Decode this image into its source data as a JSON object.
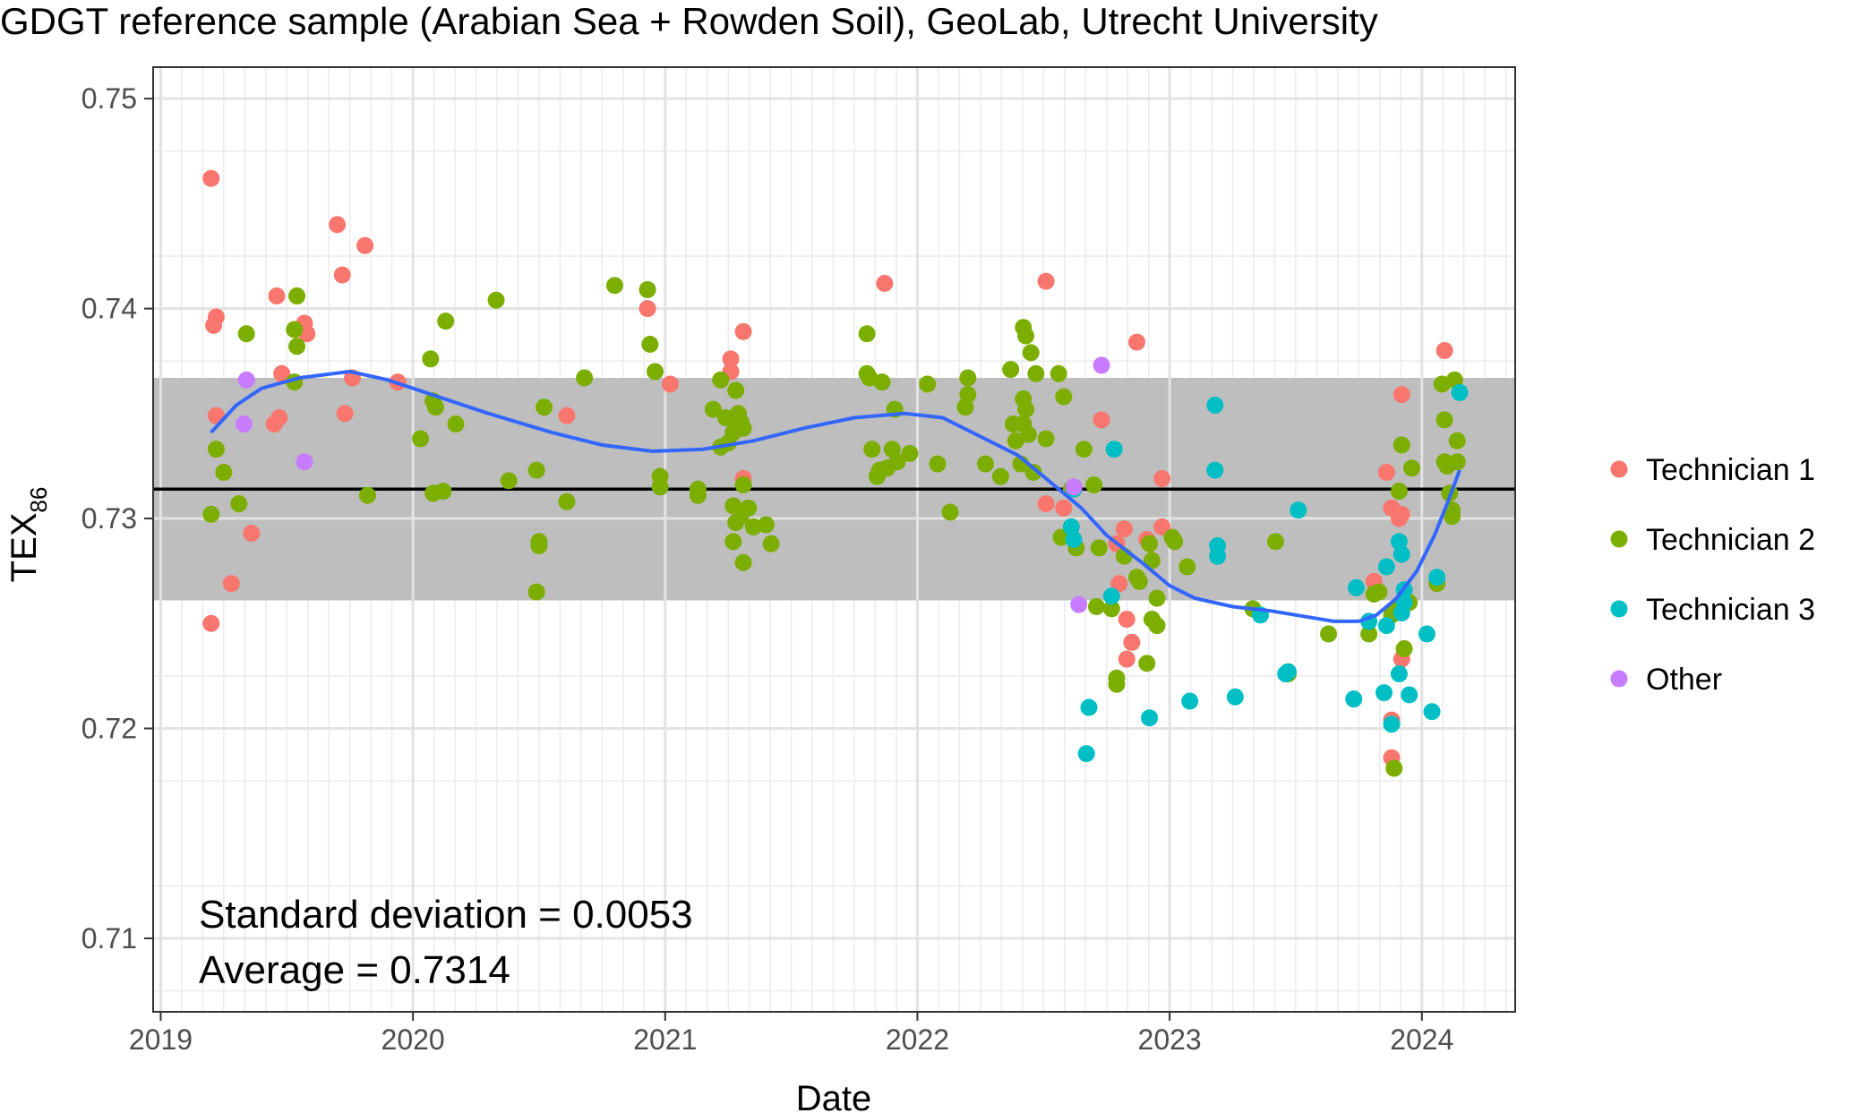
{
  "chart_data": {
    "type": "scatter",
    "title": "GDGT reference sample (Arabian Sea + Rowden Soil), GeoLab, Utrecht University",
    "xlabel": "Date",
    "ylabel_main": "TEX",
    "ylabel_sub": "86",
    "xlim": [
      2018.97,
      2024.37
    ],
    "ylim": [
      0.7065,
      0.7515
    ],
    "x_ticks": [
      2019,
      2020,
      2021,
      2022,
      2023,
      2024
    ],
    "x_tick_labels": [
      "2019",
      "2020",
      "2021",
      "2022",
      "2023",
      "2024"
    ],
    "y_ticks": [
      0.71,
      0.72,
      0.73,
      0.74,
      0.75
    ],
    "y_tick_labels": [
      "0.71",
      "0.72",
      "0.73",
      "0.74",
      "0.75"
    ],
    "grid": true,
    "legend_position": "right",
    "average": 0.7314,
    "band": [
      0.7261,
      0.7367
    ],
    "annotations": [
      "Standard deviation = 0.0053",
      "Average = 0.7314"
    ],
    "series": [
      {
        "name": "Technician 1",
        "color": "#F8766D",
        "points": [
          [
            2019.2,
            0.7462
          ],
          [
            2019.22,
            0.7396
          ],
          [
            2019.21,
            0.7392
          ],
          [
            2019.22,
            0.7349
          ],
          [
            2019.2,
            0.725
          ],
          [
            2019.28,
            0.7269
          ],
          [
            2019.36,
            0.7293
          ],
          [
            2019.46,
            0.7406
          ],
          [
            2019.48,
            0.7369
          ],
          [
            2019.45,
            0.7345
          ],
          [
            2019.47,
            0.7348
          ],
          [
            2019.57,
            0.7393
          ],
          [
            2019.58,
            0.7388
          ],
          [
            2019.7,
            0.744
          ],
          [
            2019.72,
            0.7416
          ],
          [
            2019.73,
            0.735
          ],
          [
            2019.76,
            0.7367
          ],
          [
            2019.81,
            0.743
          ],
          [
            2019.94,
            0.7365
          ],
          [
            2020.61,
            0.7349
          ],
          [
            2020.93,
            0.74
          ],
          [
            2021.02,
            0.7364
          ],
          [
            2021.26,
            0.7376
          ],
          [
            2021.26,
            0.737
          ],
          [
            2021.31,
            0.7389
          ],
          [
            2021.31,
            0.7319
          ],
          [
            2021.87,
            0.7412
          ],
          [
            2022.51,
            0.7413
          ],
          [
            2022.51,
            0.7307
          ],
          [
            2022.58,
            0.7305
          ],
          [
            2022.73,
            0.7347
          ],
          [
            2022.79,
            0.7288
          ],
          [
            2022.82,
            0.7295
          ],
          [
            2022.8,
            0.7269
          ],
          [
            2022.83,
            0.7252
          ],
          [
            2022.85,
            0.7241
          ],
          [
            2022.83,
            0.7233
          ],
          [
            2022.87,
            0.7384
          ],
          [
            2022.91,
            0.729
          ],
          [
            2022.97,
            0.7319
          ],
          [
            2022.97,
            0.7296
          ],
          [
            2023.81,
            0.727
          ],
          [
            2023.86,
            0.7322
          ],
          [
            2023.88,
            0.7305
          ],
          [
            2023.92,
            0.7302
          ],
          [
            2023.91,
            0.73
          ],
          [
            2023.92,
            0.7359
          ],
          [
            2023.92,
            0.7233
          ],
          [
            2023.88,
            0.7204
          ],
          [
            2023.88,
            0.7186
          ],
          [
            2024.09,
            0.738
          ]
        ]
      },
      {
        "name": "Technician 2",
        "color": "#7CAE00",
        "points": [
          [
            2019.2,
            0.7302
          ],
          [
            2019.22,
            0.7333
          ],
          [
            2019.25,
            0.7322
          ],
          [
            2019.31,
            0.7307
          ],
          [
            2019.34,
            0.7388
          ],
          [
            2019.53,
            0.739
          ],
          [
            2019.54,
            0.7406
          ],
          [
            2019.54,
            0.7382
          ],
          [
            2019.53,
            0.7365
          ],
          [
            2019.82,
            0.7311
          ],
          [
            2020.03,
            0.7338
          ],
          [
            2020.07,
            0.7376
          ],
          [
            2020.08,
            0.7356
          ],
          [
            2020.09,
            0.7353
          ],
          [
            2020.13,
            0.7394
          ],
          [
            2020.17,
            0.7345
          ],
          [
            2020.08,
            0.7312
          ],
          [
            2020.12,
            0.7313
          ],
          [
            2020.33,
            0.7404
          ],
          [
            2020.38,
            0.7318
          ],
          [
            2020.49,
            0.7323
          ],
          [
            2020.5,
            0.7289
          ],
          [
            2020.5,
            0.7287
          ],
          [
            2020.49,
            0.7265
          ],
          [
            2020.52,
            0.7353
          ],
          [
            2020.61,
            0.7308
          ],
          [
            2020.68,
            0.7367
          ],
          [
            2020.8,
            0.7411
          ],
          [
            2020.93,
            0.7409
          ],
          [
            2020.94,
            0.7383
          ],
          [
            2020.96,
            0.737
          ],
          [
            2020.98,
            0.732
          ],
          [
            2020.98,
            0.7315
          ],
          [
            2021.13,
            0.7314
          ],
          [
            2021.13,
            0.7311
          ],
          [
            2021.19,
            0.7352
          ],
          [
            2021.22,
            0.7366
          ],
          [
            2021.22,
            0.7334
          ],
          [
            2021.24,
            0.7348
          ],
          [
            2021.25,
            0.7336
          ],
          [
            2021.27,
            0.7341
          ],
          [
            2021.28,
            0.7361
          ],
          [
            2021.29,
            0.735
          ],
          [
            2021.3,
            0.7346
          ],
          [
            2021.31,
            0.7343
          ],
          [
            2021.27,
            0.7306
          ],
          [
            2021.28,
            0.7298
          ],
          [
            2021.3,
            0.7301
          ],
          [
            2021.31,
            0.7316
          ],
          [
            2021.33,
            0.7305
          ],
          [
            2021.27,
            0.7289
          ],
          [
            2021.31,
            0.7279
          ],
          [
            2021.35,
            0.7296
          ],
          [
            2021.4,
            0.7297
          ],
          [
            2021.42,
            0.7288
          ],
          [
            2021.8,
            0.7388
          ],
          [
            2021.8,
            0.7369
          ],
          [
            2021.81,
            0.7367
          ],
          [
            2021.82,
            0.7333
          ],
          [
            2021.85,
            0.7323
          ],
          [
            2021.84,
            0.732
          ],
          [
            2021.86,
            0.7365
          ],
          [
            2021.88,
            0.7324
          ],
          [
            2021.9,
            0.7333
          ],
          [
            2021.91,
            0.7352
          ],
          [
            2021.92,
            0.7327
          ],
          [
            2021.97,
            0.7331
          ],
          [
            2022.04,
            0.7364
          ],
          [
            2022.08,
            0.7326
          ],
          [
            2022.13,
            0.7303
          ],
          [
            2022.19,
            0.7353
          ],
          [
            2022.2,
            0.7367
          ],
          [
            2022.2,
            0.7359
          ],
          [
            2022.27,
            0.7326
          ],
          [
            2022.33,
            0.732
          ],
          [
            2022.37,
            0.7371
          ],
          [
            2022.38,
            0.7345
          ],
          [
            2022.39,
            0.7337
          ],
          [
            2022.42,
            0.7391
          ],
          [
            2022.43,
            0.7387
          ],
          [
            2022.42,
            0.7357
          ],
          [
            2022.43,
            0.7352
          ],
          [
            2022.42,
            0.7345
          ],
          [
            2022.44,
            0.734
          ],
          [
            2022.41,
            0.7326
          ],
          [
            2022.45,
            0.7379
          ],
          [
            2022.47,
            0.7369
          ],
          [
            2022.46,
            0.7322
          ],
          [
            2022.51,
            0.7338
          ],
          [
            2022.56,
            0.7369
          ],
          [
            2022.58,
            0.7358
          ],
          [
            2022.61,
            0.7314
          ],
          [
            2022.66,
            0.7333
          ],
          [
            2022.57,
            0.7291
          ],
          [
            2022.63,
            0.7286
          ],
          [
            2022.7,
            0.7316
          ],
          [
            2022.72,
            0.7286
          ],
          [
            2022.71,
            0.7258
          ],
          [
            2022.77,
            0.7257
          ],
          [
            2022.79,
            0.7224
          ],
          [
            2022.79,
            0.7221
          ],
          [
            2022.82,
            0.7282
          ],
          [
            2022.87,
            0.7272
          ],
          [
            2022.88,
            0.727
          ],
          [
            2022.91,
            0.7231
          ],
          [
            2022.92,
            0.7288
          ],
          [
            2022.93,
            0.728
          ],
          [
            2022.93,
            0.7252
          ],
          [
            2022.95,
            0.7249
          ],
          [
            2022.95,
            0.7262
          ],
          [
            2023.01,
            0.7291
          ],
          [
            2023.02,
            0.7289
          ],
          [
            2023.07,
            0.7277
          ],
          [
            2023.33,
            0.7257
          ],
          [
            2023.42,
            0.7289
          ],
          [
            2023.47,
            0.7226
          ],
          [
            2023.63,
            0.7245
          ],
          [
            2023.79,
            0.7245
          ],
          [
            2023.81,
            0.7264
          ],
          [
            2023.83,
            0.7265
          ],
          [
            2023.88,
            0.7254
          ],
          [
            2023.9,
            0.7257
          ],
          [
            2023.91,
            0.7313
          ],
          [
            2023.92,
            0.7335
          ],
          [
            2023.93,
            0.7238
          ],
          [
            2023.95,
            0.726
          ],
          [
            2023.96,
            0.7324
          ],
          [
            2023.89,
            0.7181
          ],
          [
            2024.06,
            0.7269
          ],
          [
            2024.08,
            0.7364
          ],
          [
            2024.09,
            0.7347
          ],
          [
            2024.09,
            0.7327
          ],
          [
            2024.1,
            0.7325
          ],
          [
            2024.11,
            0.7312
          ],
          [
            2024.12,
            0.7304
          ],
          [
            2024.12,
            0.7301
          ],
          [
            2024.13,
            0.7366
          ],
          [
            2024.14,
            0.7327
          ],
          [
            2024.14,
            0.7337
          ]
        ]
      },
      {
        "name": "Technician 3",
        "color": "#00BFC4",
        "points": [
          [
            2022.61,
            0.7296
          ],
          [
            2022.62,
            0.7314
          ],
          [
            2022.62,
            0.729
          ],
          [
            2022.67,
            0.7188
          ],
          [
            2022.68,
            0.721
          ],
          [
            2022.77,
            0.7263
          ],
          [
            2022.78,
            0.7333
          ],
          [
            2022.92,
            0.7205
          ],
          [
            2023.08,
            0.7213
          ],
          [
            2023.18,
            0.7354
          ],
          [
            2023.18,
            0.7323
          ],
          [
            2023.19,
            0.7287
          ],
          [
            2023.19,
            0.7282
          ],
          [
            2023.26,
            0.7215
          ],
          [
            2023.36,
            0.7254
          ],
          [
            2023.47,
            0.7227
          ],
          [
            2023.46,
            0.7226
          ],
          [
            2023.51,
            0.7304
          ],
          [
            2023.73,
            0.7214
          ],
          [
            2023.74,
            0.7267
          ],
          [
            2023.79,
            0.7251
          ],
          [
            2023.85,
            0.7217
          ],
          [
            2023.86,
            0.7277
          ],
          [
            2023.86,
            0.7249
          ],
          [
            2023.88,
            0.7202
          ],
          [
            2023.91,
            0.7289
          ],
          [
            2023.92,
            0.7283
          ],
          [
            2023.93,
            0.7266
          ],
          [
            2023.93,
            0.726
          ],
          [
            2023.92,
            0.7255
          ],
          [
            2023.91,
            0.7226
          ],
          [
            2023.95,
            0.7216
          ],
          [
            2024.02,
            0.7245
          ],
          [
            2024.04,
            0.7208
          ],
          [
            2024.06,
            0.7272
          ],
          [
            2024.15,
            0.736
          ]
        ]
      },
      {
        "name": "Other",
        "color": "#C77CFF",
        "points": [
          [
            2019.34,
            0.7366
          ],
          [
            2019.33,
            0.7345
          ],
          [
            2019.57,
            0.7327
          ],
          [
            2022.62,
            0.7315
          ],
          [
            2022.64,
            0.7259
          ],
          [
            2022.73,
            0.7373
          ]
        ]
      },
      {
        "name": "",
        "type": "line",
        "color": "#3366FF",
        "points": [
          [
            2019.2,
            0.7341
          ],
          [
            2019.3,
            0.7354
          ],
          [
            2019.4,
            0.7362
          ],
          [
            2019.55,
            0.7367
          ],
          [
            2019.75,
            0.737
          ],
          [
            2019.9,
            0.7366
          ],
          [
            2020.05,
            0.736
          ],
          [
            2020.3,
            0.735
          ],
          [
            2020.55,
            0.7341
          ],
          [
            2020.75,
            0.7335
          ],
          [
            2020.95,
            0.7332
          ],
          [
            2021.15,
            0.7333
          ],
          [
            2021.35,
            0.7337
          ],
          [
            2021.55,
            0.7343
          ],
          [
            2021.75,
            0.7348
          ],
          [
            2021.95,
            0.735
          ],
          [
            2022.1,
            0.7348
          ],
          [
            2022.25,
            0.7339
          ],
          [
            2022.4,
            0.733
          ],
          [
            2022.55,
            0.7315
          ],
          [
            2022.65,
            0.7305
          ],
          [
            2022.75,
            0.7292
          ],
          [
            2022.9,
            0.7278
          ],
          [
            2023.0,
            0.7268
          ],
          [
            2023.1,
            0.7262
          ],
          [
            2023.25,
            0.7258
          ],
          [
            2023.4,
            0.7256
          ],
          [
            2023.55,
            0.7253
          ],
          [
            2023.65,
            0.7251
          ],
          [
            2023.75,
            0.7251
          ],
          [
            2023.82,
            0.7254
          ],
          [
            2023.9,
            0.7262
          ],
          [
            2023.98,
            0.7275
          ],
          [
            2024.05,
            0.7292
          ],
          [
            2024.1,
            0.7307
          ],
          [
            2024.15,
            0.7323
          ]
        ]
      }
    ]
  }
}
